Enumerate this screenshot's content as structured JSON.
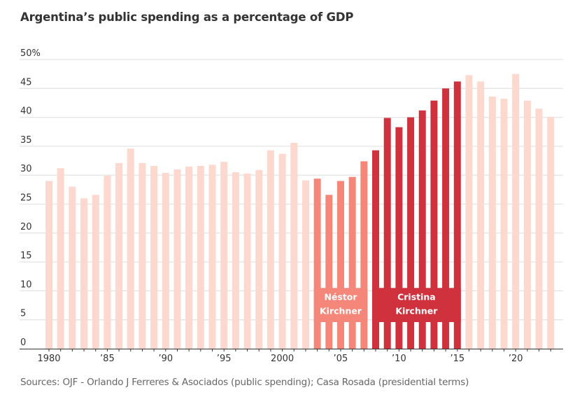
{
  "chart_data": {
    "type": "bar",
    "title": "Argentina’s public spending as a percentage of GDP",
    "xlabel": "",
    "ylabel": "",
    "ylim": [
      0,
      50
    ],
    "y_ticks": [
      {
        "value": 0,
        "label": "0"
      },
      {
        "value": 5,
        "label": "5"
      },
      {
        "value": 10,
        "label": "10"
      },
      {
        "value": 15,
        "label": "15"
      },
      {
        "value": 20,
        "label": "20"
      },
      {
        "value": 25,
        "label": "25"
      },
      {
        "value": 30,
        "label": "30"
      },
      {
        "value": 35,
        "label": "35"
      },
      {
        "value": 40,
        "label": "40"
      },
      {
        "value": 45,
        "label": "45"
      },
      {
        "value": 50,
        "label": "50%"
      }
    ],
    "x_ticks": [
      {
        "value": 1980,
        "label": "1980"
      },
      {
        "value": 1985,
        "label": "’85"
      },
      {
        "value": 1990,
        "label": "’90"
      },
      {
        "value": 1995,
        "label": "’95"
      },
      {
        "value": 2000,
        "label": "2000"
      },
      {
        "value": 2005,
        "label": "’05"
      },
      {
        "value": 2010,
        "label": "’10"
      },
      {
        "value": 2015,
        "label": "’15"
      },
      {
        "value": 2020,
        "label": "’20"
      }
    ],
    "grid": true,
    "categories": [
      1980,
      1981,
      1982,
      1983,
      1984,
      1985,
      1986,
      1987,
      1988,
      1989,
      1990,
      1991,
      1992,
      1993,
      1994,
      1995,
      1996,
      1997,
      1998,
      1999,
      2000,
      2001,
      2002,
      2003,
      2004,
      2005,
      2006,
      2007,
      2008,
      2009,
      2010,
      2011,
      2012,
      2013,
      2014,
      2015,
      2016,
      2017,
      2018,
      2019,
      2020,
      2021,
      2022,
      2023
    ],
    "values": [
      29.0,
      31.2,
      28.0,
      26.0,
      26.6,
      29.9,
      32.1,
      34.6,
      32.1,
      31.6,
      30.4,
      31.0,
      31.5,
      31.6,
      31.8,
      32.3,
      30.5,
      30.3,
      30.9,
      34.3,
      33.7,
      35.6,
      29.1,
      29.4,
      26.6,
      29.0,
      29.7,
      32.4,
      34.3,
      39.9,
      38.3,
      40.0,
      41.2,
      42.9,
      45.0,
      46.2,
      47.3,
      46.2,
      43.6,
      43.2,
      47.5,
      42.9,
      41.5,
      40.1
    ],
    "highlights": [
      {
        "name": "Néstor Kirchner",
        "label_lines": [
          "Néstor",
          "Kirchner"
        ],
        "start": 2003,
        "end": 2007,
        "color": "#f4877a"
      },
      {
        "name": "Cristina Kirchner",
        "label_lines": [
          "Cristina",
          "Kirchner"
        ],
        "start": 2008,
        "end": 2015,
        "color": "#cf313d"
      }
    ],
    "default_color": "#fcd8cf",
    "source": "Sources: OJF - Orlando J Ferreres & Asociados (public spending); Casa Rosada (presidential terms)"
  }
}
